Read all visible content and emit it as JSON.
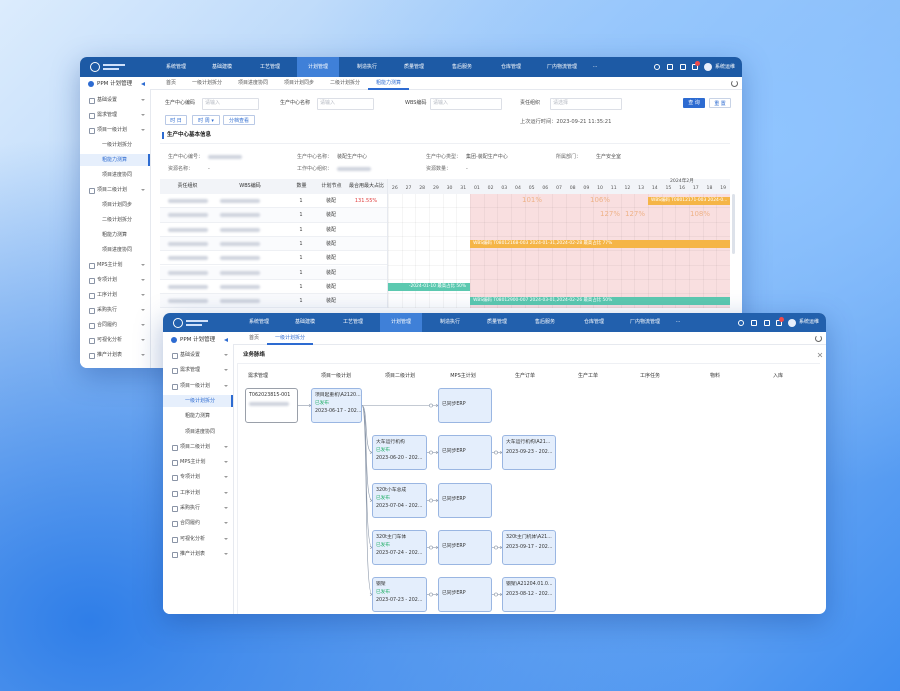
{
  "background_window": {
    "nav": [
      "系统管理",
      "基础建模",
      "工艺管理",
      "计划管理",
      "制造执行",
      "质量管理",
      "售后服务",
      "仓库管理",
      "厂内物流管理",
      "···"
    ],
    "user": "系统运维",
    "sidebar_title": "PPM 计划管理",
    "menu": [
      {
        "label": "基础设置"
      },
      {
        "label": "需求管理"
      },
      {
        "label": "项目一级计划",
        "children": [
          "一级计划拆分",
          "粗能力测算",
          "项目进度协同"
        ]
      },
      {
        "label": "项目二级计划",
        "children": [
          "项目计划同步",
          "二级计划拆分",
          "粗能力测算",
          "项目进度协同"
        ]
      },
      {
        "label": "MPS主计划"
      },
      {
        "label": "专项计划"
      },
      {
        "label": "工序计划"
      },
      {
        "label": "采购执行"
      },
      {
        "label": "合同履约"
      },
      {
        "label": "可视化分析"
      },
      {
        "label": "推产计划表"
      }
    ],
    "tabs": [
      "首页",
      "一级计划拆分",
      "项目进度协同",
      "项目计划同步",
      "二级计划拆分",
      "粗能力测算"
    ],
    "filters": [
      {
        "label": "生产中心编码",
        "placeholder": "请输入"
      },
      {
        "label": "生产中心名称",
        "placeholder": "请输入"
      },
      {
        "label": "WBS编码",
        "placeholder": "请输入"
      },
      {
        "label": "责任组织",
        "placeholder": "请选择"
      }
    ],
    "buttons": [
      "查 询",
      "重 置"
    ],
    "toolbar": [
      "时 日",
      "时 周 ▾",
      "分档查看"
    ],
    "last_run": "上次运行时间：2023-09-21 11:35:21",
    "section": "生产中心基本信息",
    "info": [
      {
        "label": "生产中心编号："
      },
      {
        "label": "生产中心名称：",
        "value": "装配生产中心"
      },
      {
        "label": "生产中心类型：",
        "value": "集团-装配生产中心"
      },
      {
        "label": "所属部门：",
        "value": "生产安全室"
      },
      {
        "label": "资源名称：",
        "value": "-"
      },
      {
        "label": "工作中心组织："
      },
      {
        "label": "资源数量：",
        "value": "-"
      }
    ],
    "table": {
      "headers": [
        "责任组织",
        "WBS编码",
        "数量",
        "计划节点",
        "最合用最大占比"
      ],
      "rows": [
        {
          "quantity": "1",
          "node": "装配",
          "ratio": "131.55%"
        },
        {
          "quantity": "1",
          "node": "装配"
        },
        {
          "quantity": "1",
          "node": "装配"
        },
        {
          "quantity": "1",
          "node": "装配"
        },
        {
          "quantity": "1",
          "node": "装配"
        },
        {
          "quantity": "1",
          "node": "装配"
        },
        {
          "quantity": "1",
          "node": "装配"
        },
        {
          "quantity": "1",
          "node": "装配"
        }
      ]
    },
    "gantt": {
      "month": "2024年2月",
      "days": [
        "26",
        "27",
        "28",
        "29",
        "30",
        "31",
        "01",
        "02",
        "03",
        "04",
        "05",
        "06",
        "07",
        "08",
        "09",
        "10",
        "11",
        "12",
        "13",
        "14",
        "15",
        "16",
        "17",
        "18",
        "19"
      ],
      "bars": [
        "WBS编码 T08012171-003 2024-0...",
        "WBS编码 T08012168-003 2024-01-31,2024-02-28 最高占比 77%",
        "-2024-01-10 最高占比 50%",
        "WBS编码 T08012900-007 2024-03-01,2024-02-26 最高占比 50%"
      ],
      "percents": [
        "101%",
        "106%",
        "127%",
        "127%",
        "108%"
      ]
    }
  },
  "foreground_window": {
    "nav": [
      "系统管理",
      "基础建模",
      "工艺管理",
      "计划管理",
      "制造执行",
      "质量管理",
      "售后服务",
      "仓库管理",
      "厂内物流管理",
      "···"
    ],
    "user": "系统运维",
    "sidebar_title": "PPM 计划管理",
    "menu": [
      {
        "label": "基础设置"
      },
      {
        "label": "需求管理"
      },
      {
        "label": "项目一级计划",
        "children": [
          "一级计划拆分",
          "粗能力测算",
          "项目进度协同"
        ]
      },
      {
        "label": "项目二级计划"
      },
      {
        "label": "MPS主计划"
      },
      {
        "label": "专项计划"
      },
      {
        "label": "工序计划"
      },
      {
        "label": "采购执行"
      },
      {
        "label": "合同履约"
      },
      {
        "label": "可视化分析"
      },
      {
        "label": "推产计划表"
      }
    ],
    "tabs": [
      "首页",
      "一级计划拆分"
    ],
    "flow": {
      "title": "业务脉络",
      "columns": [
        {
          "header": "需求管理",
          "nodes": [
            {
              "title": "T062023815-001"
            }
          ]
        },
        {
          "header": "项目一级计划",
          "nodes": [
            {
              "title": "项目起重机\\A2120...",
              "status": "已发布",
              "date": "2023-06-17 - 202..."
            }
          ]
        },
        {
          "header": "项目二级计划",
          "nodes": [
            null,
            {
              "title": "大车运行机构",
              "status": "已发布",
              "date": "2023-06-20 - 202..."
            },
            {
              "title": "320t小车总成",
              "status": "已发布",
              "date": "2023-07-04 - 202..."
            },
            {
              "title": "320t主门车体",
              "status": "已发布",
              "date": "2023-07-24 - 202..."
            },
            {
              "title": "钢架",
              "status": "已发布",
              "date": "2023-07-23 - 202..."
            }
          ]
        },
        {
          "header": "MPS主计划",
          "nodes": [
            {
              "title": "已同步ERP"
            },
            {
              "title": "已同步ERP"
            },
            {
              "title": "已同步ERP"
            },
            {
              "title": "已同步ERP"
            },
            {
              "title": "已同步ERP"
            }
          ]
        },
        {
          "header": "生产订单",
          "nodes": [
            null,
            {
              "title": "大车运行机构\\A21...",
              "date": "2023-09-23 - 202..."
            },
            null,
            {
              "title": "320t主门机体\\A21...",
              "date": "2023-09-17 - 202..."
            },
            {
              "title": "钢架\\A21204.01.0...",
              "date": "2023-08-12 - 202..."
            }
          ]
        },
        {
          "header": "生产工单",
          "nodes": []
        },
        {
          "header": "工序任务",
          "nodes": []
        },
        {
          "header": "物料",
          "nodes": []
        },
        {
          "header": "入库",
          "nodes": []
        }
      ]
    }
  }
}
